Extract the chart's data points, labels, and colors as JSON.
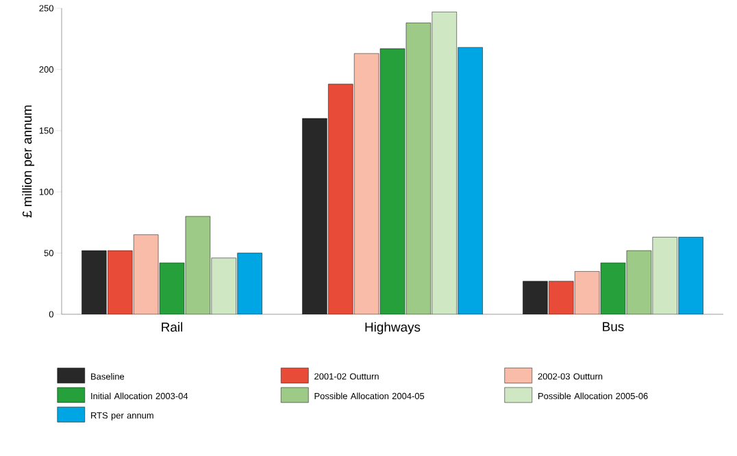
{
  "chart_data": {
    "type": "bar",
    "ylabel": "£ million per annum",
    "categories": [
      "Rail",
      "Highways",
      "Bus"
    ],
    "series": [
      {
        "name": "Baseline",
        "color": "#282828",
        "values": [
          52,
          160,
          27
        ]
      },
      {
        "name": "2001-02 Outturn",
        "color": "#e84b37",
        "values": [
          52,
          188,
          27
        ]
      },
      {
        "name": "2002-03 Outturn",
        "color": "#f9bca8",
        "values": [
          65,
          213,
          35
        ]
      },
      {
        "name": "Initial Allocation 2003-04",
        "color": "#26a03b",
        "values": [
          42,
          217,
          42
        ]
      },
      {
        "name": "Possible Allocation 2004-05",
        "color": "#9dcb87",
        "values": [
          80,
          238,
          52
        ]
      },
      {
        "name": "Possible Allocation 2005-06",
        "color": "#cfe8c3",
        "values": [
          46,
          247,
          63
        ]
      },
      {
        "name": "RTS per annum",
        "color": "#00a6e4",
        "values": [
          50,
          218,
          63
        ]
      }
    ],
    "ylim": [
      0,
      250
    ],
    "yticks": [
      0,
      50,
      100,
      150,
      200,
      250
    ],
    "legend": "bottom"
  }
}
